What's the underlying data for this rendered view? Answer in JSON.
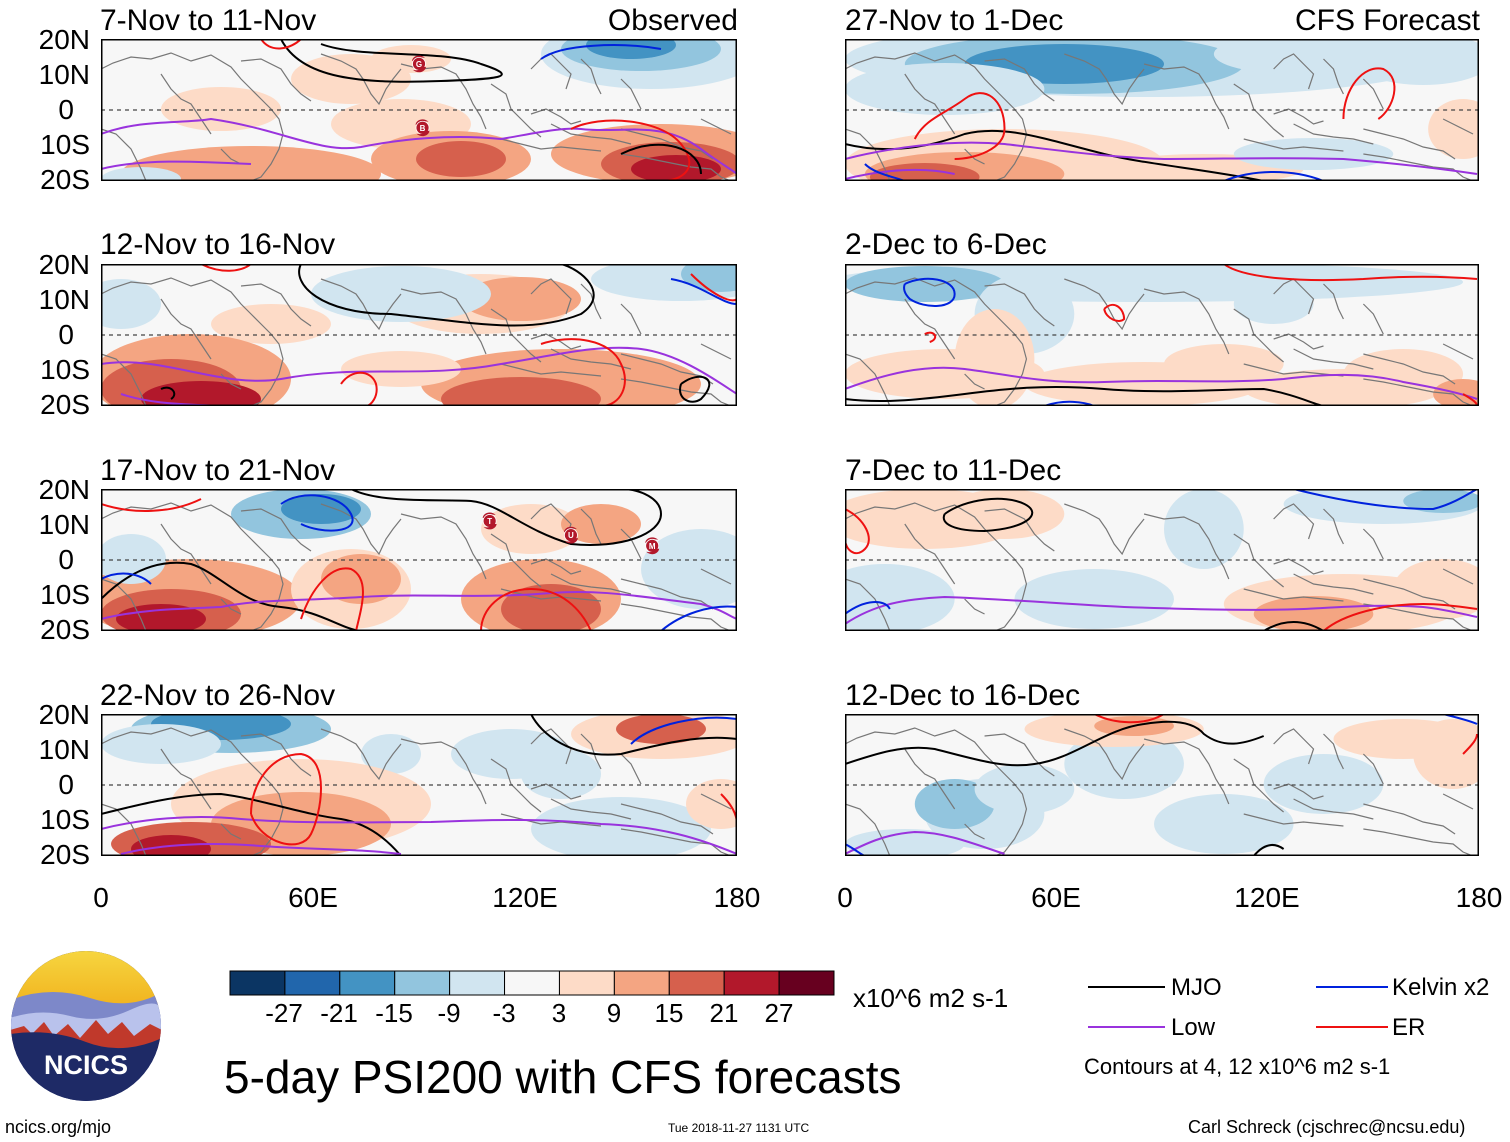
{
  "colors": {
    "mjo": "#000000",
    "kelvin": "#0022dd",
    "low": "#9933dd",
    "er": "#ee1111",
    "scale": [
      "#0b3563",
      "#2166ac",
      "#4393c3",
      "#92c5de",
      "#d1e5f0",
      "#f7f7f7",
      "#fddbc7",
      "#f4a582",
      "#d6604d",
      "#b2182b",
      "#67001f"
    ]
  },
  "labels": {
    "observed": "Observed",
    "forecast": "CFS Forecast",
    "lat": [
      "20N",
      "10N",
      "0",
      "10S",
      "20S"
    ],
    "lon": [
      "0",
      "60E",
      "120E",
      "180"
    ]
  },
  "panels": {
    "obs": [
      {
        "title": "7-Nov to 11-Nov",
        "cyclones": [
          {
            "letter": "G",
            "lon": 90,
            "lat": 13
          },
          {
            "letter": "B",
            "lon": 91,
            "lat": -5
          }
        ]
      },
      {
        "title": "12-Nov to 16-Nov",
        "cyclones": []
      },
      {
        "title": "17-Nov to 21-Nov",
        "cyclones": [
          {
            "letter": "T",
            "lon": 110,
            "lat": 11
          },
          {
            "letter": "U",
            "lon": 133,
            "lat": 7
          },
          {
            "letter": "M",
            "lon": 156,
            "lat": 4
          }
        ]
      },
      {
        "title": "22-Nov to 26-Nov",
        "cyclones": []
      }
    ],
    "fcst": [
      {
        "title": "27-Nov to 1-Dec"
      },
      {
        "title": "2-Dec to 6-Dec"
      },
      {
        "title": "7-Dec to 11-Dec"
      },
      {
        "title": "12-Dec to 16-Dec"
      }
    ]
  },
  "colorbar": {
    "ticks": [
      "-27",
      "-21",
      "-15",
      "-9",
      "-3",
      "3",
      "9",
      "15",
      "21",
      "27"
    ],
    "units": "x10^6 m2 s-1"
  },
  "legend": {
    "mjo": "MJO",
    "kelvin": "Kelvin x2",
    "low": "Low",
    "er": "ER",
    "contours": "Contours at 4, 12 x10^6 m2 s-1"
  },
  "footer": {
    "logo_text": "NCICS",
    "main_title": "5-day PSI200 with CFS forecasts",
    "site": "ncics.org/mjo",
    "timestamp": "Tue 2018-11-27 1131 UTC",
    "author": "Carl Schreck (cjschrec@ncsu.edu)"
  }
}
